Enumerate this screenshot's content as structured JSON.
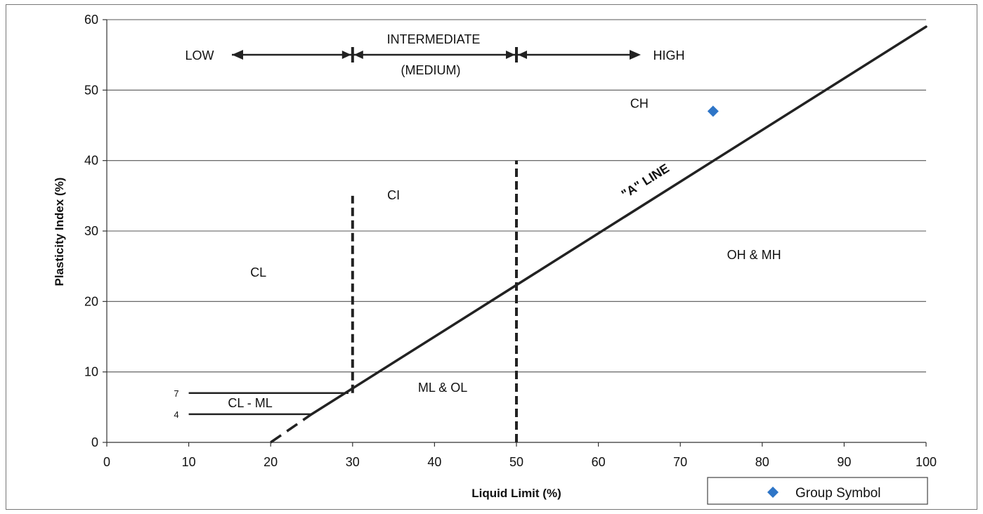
{
  "chart_data": {
    "type": "scatter",
    "xlabel": "Liquid Limit (%)",
    "ylabel": "Plasticity Index (%)",
    "xlim": [
      0,
      100
    ],
    "ylim": [
      0,
      60
    ],
    "x_ticks": [
      "0",
      "10",
      "20",
      "30",
      "40",
      "50",
      "60",
      "70",
      "80",
      "90",
      "100"
    ],
    "y_ticks": [
      "0",
      "10",
      "20",
      "30",
      "40",
      "50",
      "60"
    ],
    "grid": "horizontal",
    "series": [
      {
        "name": "Group Symbol",
        "points": [
          {
            "x": 74,
            "y": 47
          }
        ]
      }
    ],
    "a_line": {
      "label": "\"A\" LINE",
      "solid": [
        {
          "x": 25,
          "y": 4
        },
        {
          "x": 100,
          "y": 59
        }
      ],
      "dashed": [
        {
          "x": 20,
          "y": 0
        },
        {
          "x": 25,
          "y": 4
        }
      ]
    },
    "divider_lines": [
      {
        "x": 30,
        "y_from": 7,
        "y_to": 35
      },
      {
        "x": 50,
        "y_from": 0,
        "y_to": 40
      }
    ],
    "cl_ml_band": {
      "label": "CL - ML",
      "lines": [
        {
          "y": 7,
          "label": "7",
          "x_from": 10,
          "x_to": 29.5
        },
        {
          "y": 4,
          "label": "4",
          "x_from": 10,
          "x_to": 25
        }
      ]
    },
    "zones": [
      {
        "label": "CL",
        "x": 18.5,
        "y": 23.5
      },
      {
        "label": "CI",
        "x": 35,
        "y": 34.5
      },
      {
        "label": "CH",
        "x": 65,
        "y": 47.5
      },
      {
        "label": "OH & MH",
        "x": 79,
        "y": 26
      },
      {
        "label": "ML & OL",
        "x": 41,
        "y": 7.2
      }
    ],
    "range_labels": {
      "low": "LOW",
      "intermediate": "INTERMEDIATE",
      "medium": "(MEDIUM)",
      "high": "HIGH"
    },
    "legend_placement": "bottom-right"
  },
  "colors": {
    "point": "#2e75c7",
    "line": "#222222",
    "grid": "#555555"
  }
}
